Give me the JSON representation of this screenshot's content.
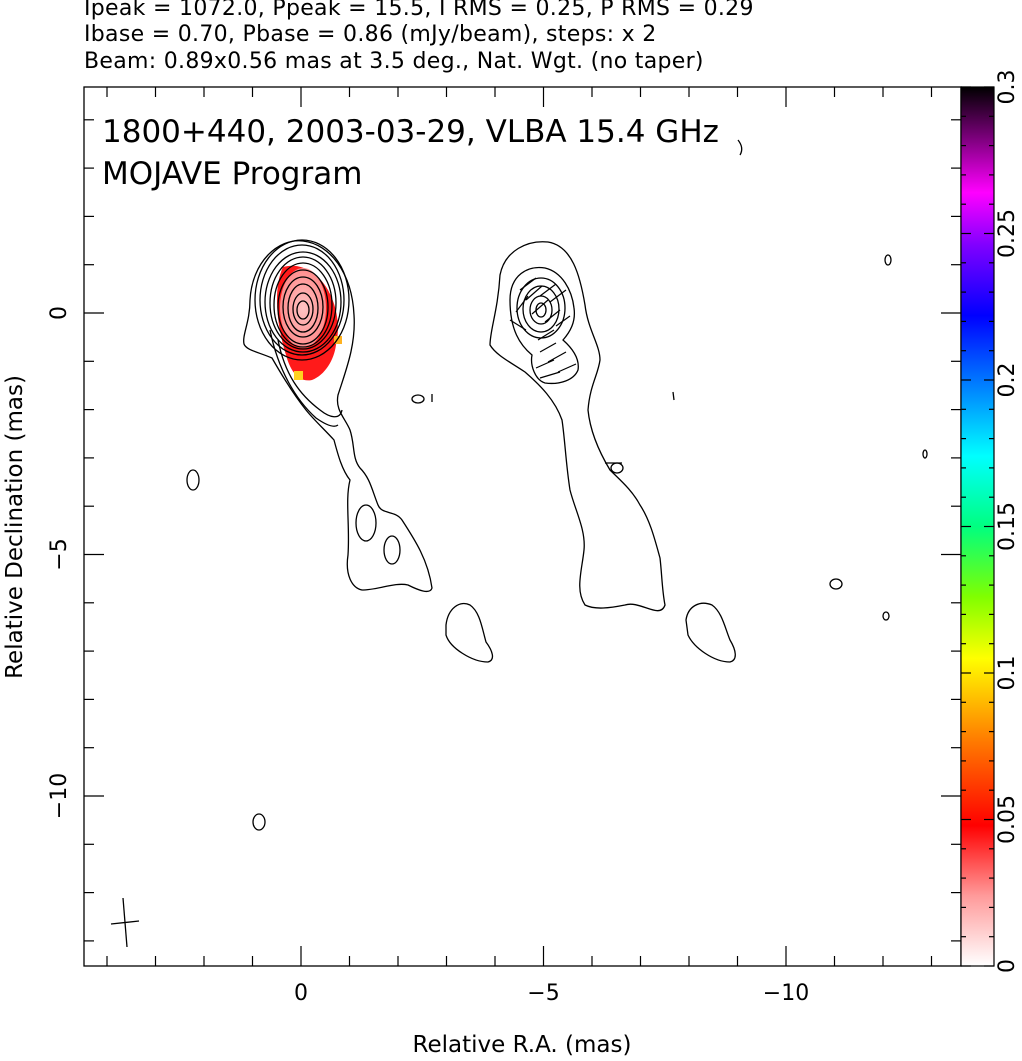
{
  "header": {
    "line1": "Ipeak = 1072.0, Ppeak = 15.5, I RMS = 0.25, P RMS = 0.29",
    "line2": "Ibase = 0.70, Pbase = 0.86 (mJy/beam), steps: x 2",
    "line3": "Beam: 0.89x0.56 mas at 3.5 deg., Nat. Wgt. (no taper)"
  },
  "chart_data": {
    "type": "contour",
    "annotations": [
      "1800+440, 2003-03-29, VLBA 15.4 GHz",
      "MOJAVE Program"
    ],
    "xlabel": "Relative R.A. (mas)",
    "ylabel": "Relative Declination (mas)",
    "xlim": [
      4.5,
      -13.6
    ],
    "ylim": [
      -13.5,
      4.7
    ],
    "x_ticks": [
      0,
      -5,
      -10
    ],
    "x_tick_labels": [
      "0",
      "−5",
      "−10"
    ],
    "y_ticks": [
      0,
      -5,
      -10
    ],
    "y_tick_labels": [
      "0",
      "−5",
      "−10"
    ],
    "colorbar": {
      "range": [
        0,
        0.3
      ],
      "ticks": [
        0,
        0.05,
        0.1,
        0.15,
        0.2,
        0.25,
        0.3
      ],
      "tick_labels": [
        "0",
        "0.05",
        "0.1",
        "0.15",
        "0.2",
        "0.25",
        "0.3"
      ],
      "colors": [
        "#ffffff",
        "#ff9a9a",
        "#ff0000",
        "#ff8000",
        "#ffff00",
        "#80ff00",
        "#00ff80",
        "#00ffff",
        "#0080ff",
        "#0000ff",
        "#8000ff",
        "#ff00ff",
        "#800080",
        "#000000"
      ]
    },
    "core_color": "#ff8c8c",
    "pol_edge_color": "#ff1a1a",
    "core_position": [
      0,
      0
    ],
    "pol_peak_position": [
      -5,
      0
    ],
    "beam": {
      "major_mas": 0.89,
      "minor_mas": 0.56,
      "pa_deg": 3.5
    }
  }
}
